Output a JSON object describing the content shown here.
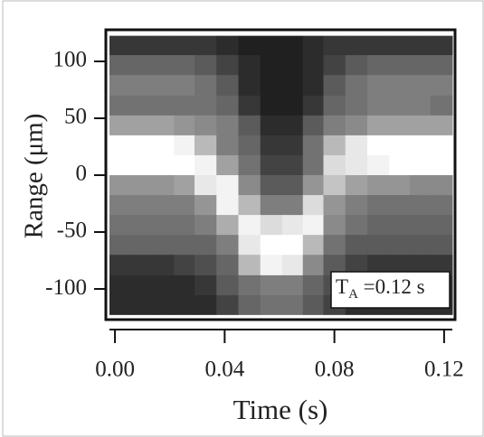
{
  "chart_data": {
    "type": "heatmap",
    "x_label": "Time (s)",
    "y_label": "Range (μm)",
    "xlim": [
      -0.002,
      0.123
    ],
    "ylim": [
      -123,
      123
    ],
    "xticks": [
      {
        "value": 0,
        "label": "0.00"
      },
      0.04,
      0.08,
      0.12
    ],
    "yticks": [
      100,
      50,
      0,
      -50,
      -100
    ],
    "colormap": [
      "#141414",
      "#ffffff"
    ],
    "annotation": {
      "text": "T",
      "subscript": "A",
      "rest": " =0.12 s"
    },
    "x": [
      0.002,
      0.01,
      0.018,
      0.025,
      0.033,
      0.041,
      0.049,
      0.057,
      0.065,
      0.072,
      0.08,
      0.088,
      0.096,
      0.104,
      0.111,
      0.119
    ],
    "y": [
      114,
      97,
      79,
      61,
      44,
      26,
      9,
      -9,
      -26,
      -44,
      -61,
      -79,
      -97,
      -114
    ],
    "z": [
      [
        0.15,
        0.15,
        0.15,
        0.15,
        0.15,
        0.1,
        0.05,
        0.05,
        0.05,
        0.1,
        0.15,
        0.15,
        0.15,
        0.15,
        0.15,
        0.15
      ],
      [
        0.35,
        0.35,
        0.35,
        0.35,
        0.3,
        0.2,
        0.1,
        0.05,
        0.05,
        0.1,
        0.2,
        0.3,
        0.35,
        0.35,
        0.35,
        0.35
      ],
      [
        0.45,
        0.45,
        0.45,
        0.45,
        0.4,
        0.3,
        0.1,
        0.05,
        0.05,
        0.1,
        0.3,
        0.4,
        0.45,
        0.45,
        0.45,
        0.45
      ],
      [
        0.4,
        0.4,
        0.4,
        0.4,
        0.4,
        0.35,
        0.15,
        0.05,
        0.05,
        0.15,
        0.35,
        0.4,
        0.45,
        0.45,
        0.45,
        0.4
      ],
      [
        0.6,
        0.6,
        0.6,
        0.55,
        0.5,
        0.45,
        0.3,
        0.1,
        0.1,
        0.3,
        0.45,
        0.5,
        0.6,
        0.6,
        0.6,
        0.6
      ],
      [
        1,
        1,
        1,
        0.95,
        0.7,
        0.45,
        0.35,
        0.15,
        0.15,
        0.4,
        0.7,
        0.9,
        1,
        1,
        1,
        1
      ],
      [
        1,
        1,
        1,
        1,
        0.95,
        0.6,
        0.4,
        0.2,
        0.2,
        0.4,
        0.85,
        0.9,
        0.95,
        1,
        1,
        1
      ],
      [
        0.55,
        0.55,
        0.55,
        0.6,
        0.9,
        0.95,
        0.5,
        0.3,
        0.3,
        0.55,
        0.75,
        0.6,
        0.55,
        0.55,
        0.5,
        0.5
      ],
      [
        0.45,
        0.45,
        0.45,
        0.45,
        0.55,
        0.95,
        0.7,
        0.45,
        0.45,
        0.85,
        0.55,
        0.45,
        0.4,
        0.4,
        0.4,
        0.4
      ],
      [
        0.4,
        0.4,
        0.4,
        0.4,
        0.45,
        0.65,
        0.95,
        0.85,
        0.9,
        0.95,
        0.5,
        0.4,
        0.35,
        0.35,
        0.35,
        0.35
      ],
      [
        0.35,
        0.35,
        0.35,
        0.35,
        0.35,
        0.45,
        0.9,
        1,
        1,
        0.7,
        0.4,
        0.3,
        0.3,
        0.3,
        0.3,
        0.3
      ],
      [
        0.15,
        0.15,
        0.15,
        0.2,
        0.25,
        0.35,
        0.7,
        0.95,
        0.9,
        0.5,
        0.3,
        0.2,
        0.15,
        0.15,
        0.15,
        0.15
      ],
      [
        0.1,
        0.1,
        0.1,
        0.1,
        0.15,
        0.3,
        0.4,
        0.45,
        0.45,
        0.35,
        0.25,
        0.15,
        0.1,
        0.1,
        0.1,
        0.1
      ],
      [
        0.1,
        0.1,
        0.1,
        0.1,
        0.1,
        0.2,
        0.35,
        0.4,
        0.4,
        0.3,
        0.2,
        0.1,
        0.1,
        0.1,
        0.1,
        0.1
      ]
    ]
  }
}
